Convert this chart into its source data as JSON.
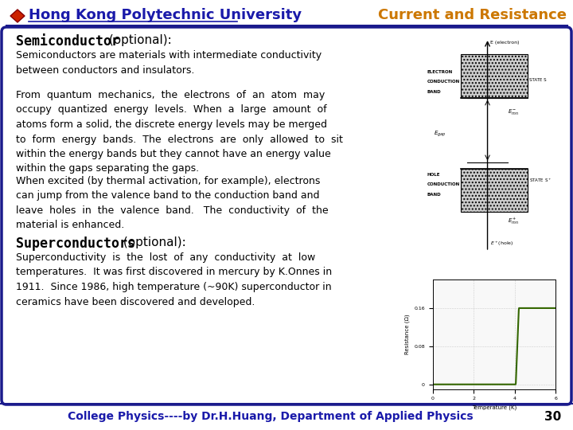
{
  "bg_color": "#ffffff",
  "border_color": "#1a1a8c",
  "title_left": "Hong Kong Polytechnic University",
  "title_right": "Current and Resistance",
  "title_left_color": "#1a1aaa",
  "title_right_color": "#cc7700",
  "logo_color": "#cc2200",
  "section1_bold": "Semiconductor",
  "section1_rest": " (optional):",
  "para1": "Semiconductors are materials with intermediate conductivity\nbetween conductors and insulators.",
  "para2": "From  quantum  mechanics,  the  electrons  of  an  atom  may\noccupy  quantized  energy  levels.  When  a  large  amount  of\natoms form a solid, the discrete energy levels may be merged\nto  form  energy  bands.  The  electrons  are  only  allowed  to  sit\nwithin the energy bands but they cannot have an energy value\nwithin the gaps separating the gaps.",
  "para3": "When excited (by thermal activation, for example), electrons\ncan jump from the valence band to the conduction band and\nleave  holes  in  the  valence  band.   The  conductivity  of  the\nmaterial is enhanced.",
  "section2_bold": "Superconductors",
  "section2_rest": " (optional):",
  "para4": "Superconductivity  is  the  lost  of  any  conductivity  at  low\ntemperatures.  It was first discovered in mercury by K.Onnes in\n1911.  Since 1986, high temperature (~90K) superconductor in\nceramics have been discovered and developed.",
  "footer_text": "College Physics----by Dr.H.Huang, Department of Applied Physics",
  "footer_color": "#1a1aaa",
  "page_number": "30",
  "text_color": "#000000",
  "main_font_size": 9.0,
  "section_font_size": 12,
  "footer_font_size": 10
}
